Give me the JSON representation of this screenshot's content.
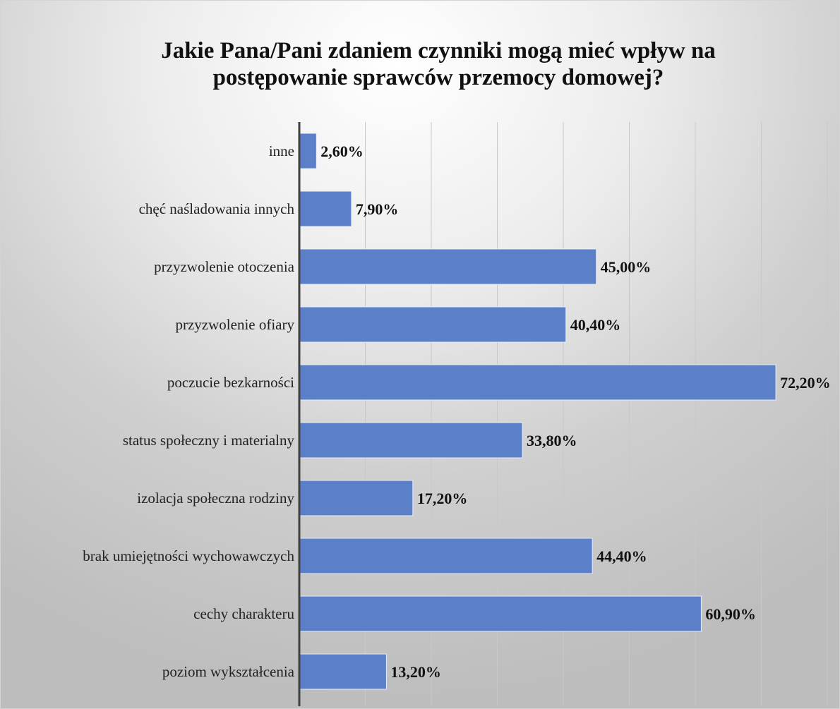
{
  "chart_data": {
    "type": "bar",
    "orientation": "horizontal",
    "title": "Jakie Pana/Pani zdaniem czynniki mogą mieć wpływ na postępowanie sprawców przemocy domowej?",
    "categories": [
      "inne",
      "chęć naśladowania innych",
      "przyzwolenie otoczenia",
      "przyzwolenie ofiary",
      "poczucie bezkarności",
      "status społeczny i materialny",
      "izolacja społeczna rodziny",
      "brak umiejętności wychowawczych",
      "cechy charakteru",
      "poziom wykształcenia"
    ],
    "values": [
      2.6,
      7.9,
      45.0,
      40.4,
      72.2,
      33.8,
      17.2,
      44.4,
      60.9,
      13.2
    ],
    "value_labels": [
      "2,60%",
      "7,90%",
      "45,00%",
      "40,40%",
      "72,20%",
      "33,80%",
      "17,20%",
      "44,40%",
      "60,90%",
      "13,20%"
    ],
    "xlim": [
      0,
      80
    ],
    "grid": true,
    "bar_color": "#5b80c8"
  }
}
